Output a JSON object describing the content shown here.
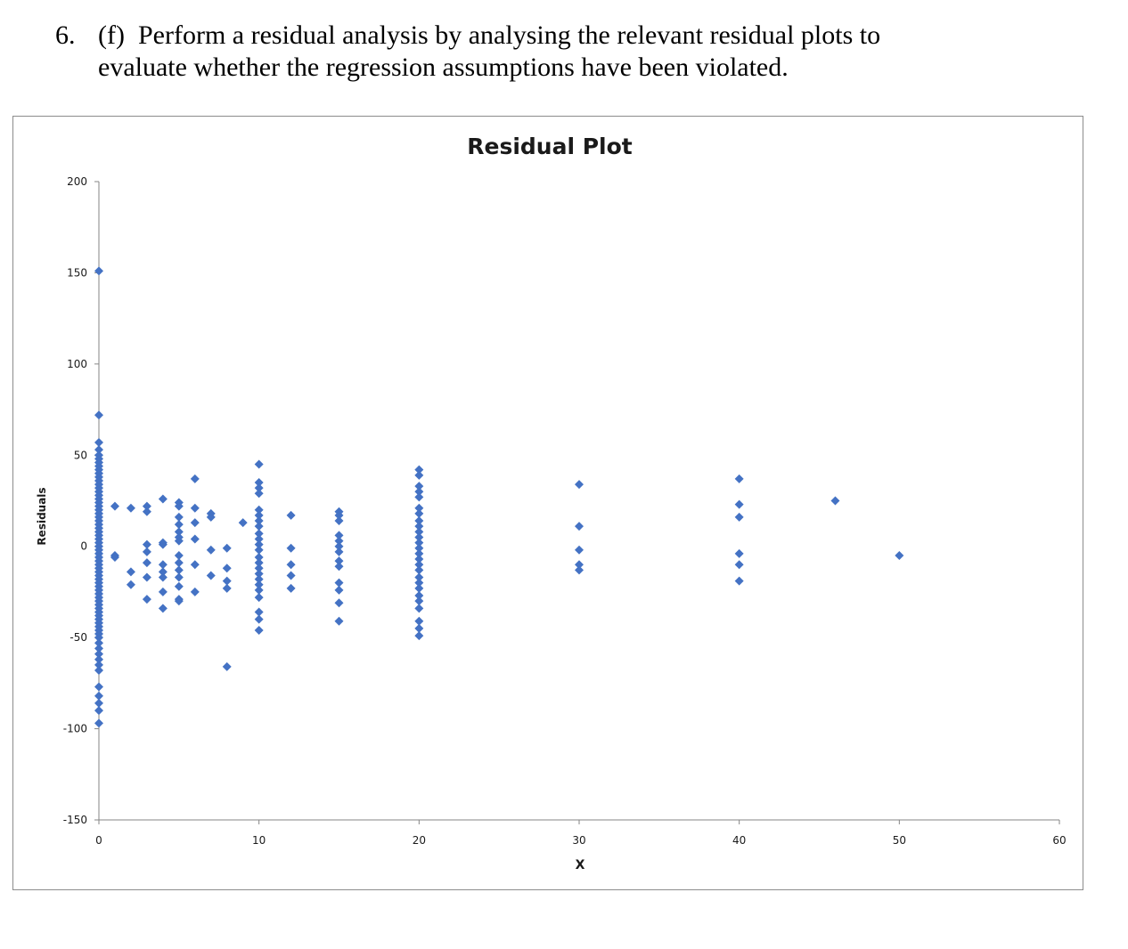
{
  "question": {
    "number": "6.",
    "part": "(f)",
    "line1": "Perform a residual analysis by analysing the relevant residual plots to",
    "line2": "evaluate whether the regression assumptions have been violated."
  },
  "chart_data": {
    "type": "scatter",
    "title": "Residual Plot",
    "xlabel": "X",
    "ylabel": "Residuals",
    "xlim": [
      0,
      60
    ],
    "ylim": [
      -150,
      200
    ],
    "xticks": [
      0,
      10,
      20,
      30,
      40,
      50,
      60
    ],
    "yticks": [
      200,
      150,
      100,
      50,
      0,
      -50,
      -100,
      -150
    ],
    "grid": false,
    "legend": "none",
    "marker_color": "#4472C4",
    "series": [
      {
        "name": "Residuals",
        "points": [
          [
            0,
            151
          ],
          [
            0,
            72
          ],
          [
            0,
            57
          ],
          [
            0,
            53
          ],
          [
            0,
            50
          ],
          [
            0,
            48
          ],
          [
            0,
            46
          ],
          [
            0,
            44
          ],
          [
            0,
            42
          ],
          [
            0,
            40
          ],
          [
            0,
            38
          ],
          [
            0,
            36
          ],
          [
            0,
            34
          ],
          [
            0,
            32
          ],
          [
            0,
            30
          ],
          [
            0,
            28
          ],
          [
            0,
            26
          ],
          [
            0,
            24
          ],
          [
            0,
            22
          ],
          [
            0,
            20
          ],
          [
            0,
            18
          ],
          [
            0,
            16
          ],
          [
            0,
            14
          ],
          [
            0,
            12
          ],
          [
            0,
            10
          ],
          [
            0,
            8
          ],
          [
            0,
            6
          ],
          [
            0,
            4
          ],
          [
            0,
            2
          ],
          [
            0,
            0
          ],
          [
            0,
            -2
          ],
          [
            0,
            -4
          ],
          [
            0,
            -6
          ],
          [
            0,
            -8
          ],
          [
            0,
            -10
          ],
          [
            0,
            -12
          ],
          [
            0,
            -14
          ],
          [
            0,
            -16
          ],
          [
            0,
            -18
          ],
          [
            0,
            -20
          ],
          [
            0,
            -22
          ],
          [
            0,
            -24
          ],
          [
            0,
            -26
          ],
          [
            0,
            -28
          ],
          [
            0,
            -30
          ],
          [
            0,
            -32
          ],
          [
            0,
            -34
          ],
          [
            0,
            -36
          ],
          [
            0,
            -38
          ],
          [
            0,
            -40
          ],
          [
            0,
            -42
          ],
          [
            0,
            -44
          ],
          [
            0,
            -46
          ],
          [
            0,
            -48
          ],
          [
            0,
            -50
          ],
          [
            0,
            -53
          ],
          [
            0,
            -56
          ],
          [
            0,
            -59
          ],
          [
            0,
            -62
          ],
          [
            0,
            -65
          ],
          [
            0,
            -68
          ],
          [
            0,
            -77
          ],
          [
            0,
            -82
          ],
          [
            0,
            -86
          ],
          [
            0,
            -90
          ],
          [
            0,
            -97
          ],
          [
            1,
            22
          ],
          [
            1,
            -5
          ],
          [
            1,
            -6
          ],
          [
            2,
            21
          ],
          [
            2,
            -14
          ],
          [
            2,
            -21
          ],
          [
            3,
            22
          ],
          [
            3,
            19
          ],
          [
            3,
            1
          ],
          [
            3,
            -3
          ],
          [
            3,
            -9
          ],
          [
            3,
            -17
          ],
          [
            3,
            -29
          ],
          [
            4,
            26
          ],
          [
            4,
            2
          ],
          [
            4,
            1
          ],
          [
            4,
            -10
          ],
          [
            4,
            -14
          ],
          [
            4,
            -17
          ],
          [
            4,
            -25
          ],
          [
            4,
            -34
          ],
          [
            5,
            24
          ],
          [
            5,
            22
          ],
          [
            5,
            16
          ],
          [
            5,
            12
          ],
          [
            5,
            8
          ],
          [
            5,
            5
          ],
          [
            5,
            3
          ],
          [
            5,
            -5
          ],
          [
            5,
            -9
          ],
          [
            5,
            -13
          ],
          [
            5,
            -17
          ],
          [
            5,
            -22
          ],
          [
            5,
            -29
          ],
          [
            5,
            -30
          ],
          [
            6,
            37
          ],
          [
            6,
            21
          ],
          [
            6,
            13
          ],
          [
            6,
            4
          ],
          [
            6,
            -10
          ],
          [
            6,
            -25
          ],
          [
            7,
            18
          ],
          [
            7,
            16
          ],
          [
            7,
            -2
          ],
          [
            7,
            -16
          ],
          [
            8,
            -1
          ],
          [
            8,
            -12
          ],
          [
            8,
            -19
          ],
          [
            8,
            -23
          ],
          [
            8,
            -66
          ],
          [
            9,
            13
          ],
          [
            10,
            45
          ],
          [
            10,
            35
          ],
          [
            10,
            32
          ],
          [
            10,
            29
          ],
          [
            10,
            20
          ],
          [
            10,
            17
          ],
          [
            10,
            14
          ],
          [
            10,
            11
          ],
          [
            10,
            7
          ],
          [
            10,
            4
          ],
          [
            10,
            1
          ],
          [
            10,
            -2
          ],
          [
            10,
            -6
          ],
          [
            10,
            -9
          ],
          [
            10,
            -12
          ],
          [
            10,
            -15
          ],
          [
            10,
            -18
          ],
          [
            10,
            -21
          ],
          [
            10,
            -24
          ],
          [
            10,
            -28
          ],
          [
            10,
            -36
          ],
          [
            10,
            -40
          ],
          [
            10,
            -46
          ],
          [
            12,
            17
          ],
          [
            12,
            -1
          ],
          [
            12,
            -10
          ],
          [
            12,
            -16
          ],
          [
            12,
            -23
          ],
          [
            15,
            19
          ],
          [
            15,
            17
          ],
          [
            15,
            14
          ],
          [
            15,
            6
          ],
          [
            15,
            3
          ],
          [
            15,
            0
          ],
          [
            15,
            -3
          ],
          [
            15,
            -8
          ],
          [
            15,
            -11
          ],
          [
            15,
            -20
          ],
          [
            15,
            -24
          ],
          [
            15,
            -31
          ],
          [
            15,
            -41
          ],
          [
            20,
            42
          ],
          [
            20,
            39
          ],
          [
            20,
            33
          ],
          [
            20,
            30
          ],
          [
            20,
            27
          ],
          [
            20,
            21
          ],
          [
            20,
            18
          ],
          [
            20,
            14
          ],
          [
            20,
            11
          ],
          [
            20,
            8
          ],
          [
            20,
            5
          ],
          [
            20,
            2
          ],
          [
            20,
            -1
          ],
          [
            20,
            -4
          ],
          [
            20,
            -7
          ],
          [
            20,
            -10
          ],
          [
            20,
            -13
          ],
          [
            20,
            -17
          ],
          [
            20,
            -20
          ],
          [
            20,
            -23
          ],
          [
            20,
            -27
          ],
          [
            20,
            -30
          ],
          [
            20,
            -34
          ],
          [
            20,
            -41
          ],
          [
            20,
            -45
          ],
          [
            20,
            -49
          ],
          [
            30,
            34
          ],
          [
            30,
            11
          ],
          [
            30,
            -2
          ],
          [
            30,
            -10
          ],
          [
            30,
            -13
          ],
          [
            40,
            37
          ],
          [
            40,
            23
          ],
          [
            40,
            16
          ],
          [
            40,
            -4
          ],
          [
            40,
            -10
          ],
          [
            40,
            -19
          ],
          [
            46,
            25
          ],
          [
            50,
            -5
          ]
        ]
      }
    ]
  }
}
